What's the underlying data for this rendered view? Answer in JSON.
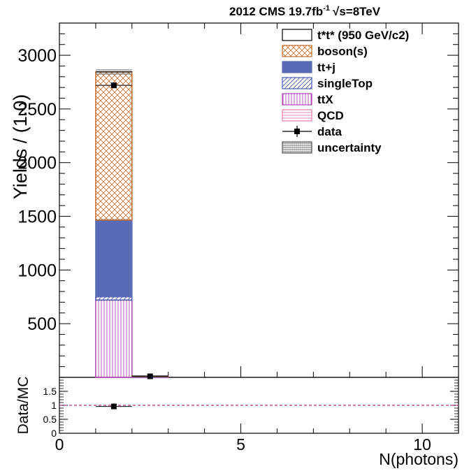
{
  "header": {
    "title": "2012 CMS 19.7fb",
    "lumi_exponent": "-1",
    "energy": "s=8TeV"
  },
  "chart_data": [
    {
      "type": "bar",
      "stacked": true,
      "xlabel": "N(photons)",
      "ylabel": "Yields / (1.0)",
      "xlim": [
        0,
        11
      ],
      "ylim": [
        0,
        3300
      ],
      "y_ticks": [
        500,
        1000,
        1500,
        2000,
        2500,
        3000
      ],
      "y_tick_labels": [
        "500",
        "1000",
        "1500",
        "2000",
        "2500",
        "3000"
      ],
      "bins": [
        [
          1,
          2
        ],
        [
          2,
          3
        ]
      ],
      "series": [
        {
          "name": "ttX",
          "color": "#b043b6",
          "values": [
            720,
            1
          ]
        },
        {
          "name": "singleTop",
          "color": "#4a5bb8",
          "values": [
            30,
            0
          ]
        },
        {
          "name": "tt+j",
          "color": "#5a6bb5",
          "values": [
            715,
            6
          ]
        },
        {
          "name": "boson(s)",
          "color": "#c46a2a",
          "values": [
            1380,
            5
          ]
        },
        {
          "name": "QCD",
          "color": "#e87aa8",
          "values": [
            0,
            0
          ]
        },
        {
          "name": "t*t* (950 GeV/c2)",
          "color": "#000000",
          "values": [
            0,
            0
          ]
        }
      ],
      "data_points": [
        {
          "x": 1.5,
          "y": 2720,
          "yerr": 25
        },
        {
          "x": 2.5,
          "y": 10,
          "yerr": 3
        }
      ],
      "uncertainty_band": [
        [
          2820,
          2870
        ],
        [
          8,
          14
        ]
      ],
      "legend": {
        "position": "top-right",
        "entries": [
          {
            "label": "t*t* (950 GeV/c2)",
            "style": "open"
          },
          {
            "label": "boson(s)",
            "style": "crosshatch",
            "color": "#c46a2a"
          },
          {
            "label": "tt+j",
            "style": "solid",
            "color": "#5a6bb5"
          },
          {
            "label": "singleTop",
            "style": "diagonal",
            "color": "#4a5bb8"
          },
          {
            "label": "ttX",
            "style": "vertical",
            "color": "#b043b6"
          },
          {
            "label": "QCD",
            "style": "horizontal",
            "color": "#e87aa8"
          },
          {
            "label": "data",
            "style": "marker"
          },
          {
            "label": "uncertainty",
            "style": "dense",
            "color": "#555555"
          }
        ]
      }
    },
    {
      "type": "scatter",
      "xlabel": "N(photons)",
      "ylabel": "Data/MC",
      "xlim": [
        0,
        11
      ],
      "ylim": [
        0,
        2
      ],
      "x_ticks": [
        0,
        5,
        10
      ],
      "x_tick_labels": [
        "0",
        "5",
        "10"
      ],
      "y_ticks": [
        0,
        0.5,
        1,
        1.5
      ],
      "y_tick_labels": [
        "0",
        "0.5",
        "1",
        "1.5"
      ],
      "reference_line": 1,
      "reference_color": "#b0337a",
      "points": [
        {
          "x": 1.5,
          "y": 0.96,
          "yerr": 0.05,
          "xerr": 0.5
        }
      ]
    }
  ]
}
